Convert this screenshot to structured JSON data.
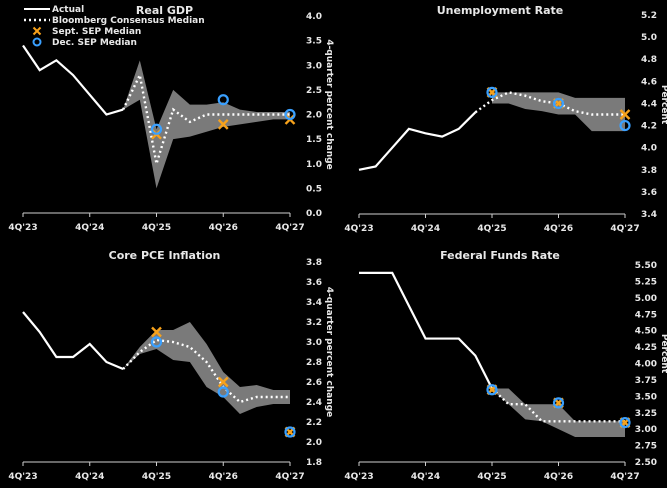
{
  "colors": {
    "background": "#000000",
    "actual": "#ffffff",
    "consensus": "#ffffff",
    "band": "#7a7a7a",
    "sept_sep": "#f7a21b",
    "dec_sep": "#3aa0ff"
  },
  "legend": [
    {
      "label": "Actual",
      "style": "solid-line"
    },
    {
      "label": "Bloomberg Consensus Median",
      "style": "dotted-line"
    },
    {
      "label": "Sept. SEP Median",
      "style": "x-marker"
    },
    {
      "label": "Dec. SEP Median",
      "style": "circle-marker"
    }
  ],
  "chart_data": [
    {
      "type": "line",
      "title": "Real GDP",
      "ylabel": "4-quarter percent change",
      "ylim": [
        0,
        4
      ],
      "yticks": [
        "0.0",
        "0.5",
        "1.0",
        "1.5",
        "2.0",
        "2.5",
        "3.0",
        "3.5",
        "4.0"
      ],
      "xticks": [
        "4Q'23",
        "4Q'24",
        "4Q'25",
        "4Q'26",
        "4Q'27"
      ],
      "categories": [
        "4Q'23",
        "1Q'24",
        "2Q'24",
        "3Q'24",
        "4Q'24",
        "1Q'25",
        "2Q'25",
        "3Q'25",
        "4Q'25",
        "1Q'26",
        "2Q'26",
        "3Q'26",
        "4Q'26",
        "1Q'27",
        "2Q'27",
        "3Q'27",
        "4Q'27"
      ],
      "actual": [
        3.4,
        2.9,
        3.1,
        2.8,
        2.4,
        2.0,
        2.1,
        null,
        null,
        null,
        null,
        null,
        null,
        null,
        null,
        null,
        null
      ],
      "consensus": [
        null,
        null,
        null,
        null,
        null,
        null,
        2.1,
        2.8,
        1.0,
        2.1,
        1.85,
        2.0,
        2.0,
        2.0,
        2.0,
        2.0,
        2.0
      ],
      "band_low": [
        null,
        null,
        null,
        null,
        null,
        null,
        2.1,
        2.3,
        0.5,
        1.5,
        1.55,
        1.65,
        1.75,
        1.8,
        1.85,
        1.9,
        1.9
      ],
      "band_high": [
        null,
        null,
        null,
        null,
        null,
        null,
        2.1,
        3.1,
        1.7,
        2.5,
        2.2,
        2.2,
        2.25,
        2.1,
        2.05,
        2.05,
        2.05
      ],
      "sept_sep": [
        {
          "x": "4Q'25",
          "y": 1.6
        },
        {
          "x": "4Q'26",
          "y": 1.8
        },
        {
          "x": "4Q'27",
          "y": 1.9
        }
      ],
      "dec_sep": [
        {
          "x": "4Q'25",
          "y": 1.7
        },
        {
          "x": "4Q'26",
          "y": 2.3
        },
        {
          "x": "4Q'27",
          "y": 2.0
        }
      ],
      "legend": "top-left",
      "grid": false
    },
    {
      "type": "line",
      "title": "Unemployment Rate",
      "ylabel": "Percent",
      "ylim": [
        3.4,
        5.2
      ],
      "yticks": [
        "3.4",
        "3.6",
        "3.8",
        "4.0",
        "4.2",
        "4.4",
        "4.6",
        "4.8",
        "5.0",
        "5.2"
      ],
      "xticks": [
        "4Q'23",
        "4Q'24",
        "4Q'25",
        "4Q'26",
        "4Q'27"
      ],
      "categories": [
        "4Q'23",
        "1Q'24",
        "2Q'24",
        "3Q'24",
        "4Q'24",
        "1Q'25",
        "2Q'25",
        "3Q'25",
        "4Q'25",
        "1Q'26",
        "2Q'26",
        "3Q'26",
        "4Q'26",
        "1Q'27",
        "2Q'27",
        "3Q'27",
        "4Q'27"
      ],
      "actual": [
        3.8,
        3.83,
        4.0,
        4.17,
        4.13,
        4.1,
        4.17,
        4.32,
        null,
        null,
        null,
        null,
        null,
        null,
        null,
        null,
        null
      ],
      "consensus": [
        null,
        null,
        null,
        null,
        null,
        null,
        null,
        4.32,
        4.43,
        4.5,
        4.47,
        4.42,
        4.4,
        4.33,
        4.3,
        4.3,
        4.3
      ],
      "band_low": [
        null,
        null,
        null,
        null,
        null,
        null,
        null,
        null,
        4.4,
        4.4,
        4.35,
        4.33,
        4.3,
        4.3,
        4.15,
        4.15,
        4.15
      ],
      "band_high": [
        null,
        null,
        null,
        null,
        null,
        null,
        null,
        null,
        4.5,
        4.5,
        4.5,
        4.5,
        4.5,
        4.45,
        4.45,
        4.45,
        4.45
      ],
      "sept_sep": [
        {
          "x": "4Q'25",
          "y": 4.5
        },
        {
          "x": "4Q'26",
          "y": 4.4
        },
        {
          "x": "4Q'27",
          "y": 4.3
        }
      ],
      "dec_sep": [
        {
          "x": "4Q'25",
          "y": 4.5
        },
        {
          "x": "4Q'26",
          "y": 4.4
        },
        {
          "x": "4Q'27",
          "y": 4.2
        }
      ],
      "grid": false
    },
    {
      "type": "line",
      "title": "Core PCE Inflation",
      "ylabel": "4-quarter percent change",
      "ylim": [
        1.8,
        3.8
      ],
      "yticks": [
        "1.8",
        "2.0",
        "2.2",
        "2.4",
        "2.6",
        "2.8",
        "3.0",
        "3.2",
        "3.4",
        "3.6",
        "3.8"
      ],
      "xticks": [
        "4Q'23",
        "4Q'24",
        "4Q'25",
        "4Q'26",
        "4Q'27"
      ],
      "categories": [
        "4Q'23",
        "1Q'24",
        "2Q'24",
        "3Q'24",
        "4Q'24",
        "1Q'25",
        "2Q'25",
        "3Q'25",
        "4Q'25",
        "1Q'26",
        "2Q'26",
        "3Q'26",
        "4Q'26",
        "1Q'27",
        "2Q'27",
        "3Q'27",
        "4Q'27"
      ],
      "actual": [
        3.3,
        3.1,
        2.85,
        2.85,
        2.98,
        2.8,
        2.73,
        null,
        null,
        null,
        null,
        null,
        null,
        null,
        null,
        null,
        null
      ],
      "consensus": [
        null,
        null,
        null,
        null,
        null,
        null,
        2.73,
        2.9,
        3.02,
        3.0,
        2.95,
        2.8,
        2.55,
        2.4,
        2.45,
        2.45,
        2.45
      ],
      "band_low": [
        null,
        null,
        null,
        null,
        null,
        null,
        2.73,
        2.88,
        2.93,
        2.82,
        2.8,
        2.55,
        2.45,
        2.28,
        2.35,
        2.38,
        2.38
      ],
      "band_high": [
        null,
        null,
        null,
        null,
        null,
        null,
        2.73,
        2.95,
        3.12,
        3.12,
        3.2,
        2.98,
        2.7,
        2.55,
        2.57,
        2.52,
        2.52
      ],
      "sept_sep": [
        {
          "x": "4Q'25",
          "y": 3.1
        },
        {
          "x": "4Q'26",
          "y": 2.6
        },
        {
          "x": "4Q'27",
          "y": 2.1
        }
      ],
      "dec_sep": [
        {
          "x": "4Q'25",
          "y": 3.0
        },
        {
          "x": "4Q'26",
          "y": 2.5
        },
        {
          "x": "4Q'27",
          "y": 2.1
        }
      ],
      "grid": false
    },
    {
      "type": "line",
      "title": "Federal Funds Rate",
      "ylabel": "Percent",
      "ylim": [
        2.5,
        5.5
      ],
      "yticks": [
        "2.50",
        "2.75",
        "3.00",
        "3.25",
        "3.50",
        "3.75",
        "4.00",
        "4.25",
        "4.50",
        "4.75",
        "5.00",
        "5.25",
        "5.50"
      ],
      "xticks": [
        "4Q'23",
        "4Q'24",
        "4Q'25",
        "4Q'26",
        "4Q'27"
      ],
      "categories": [
        "4Q'23",
        "1Q'24",
        "2Q'24",
        "3Q'24",
        "4Q'24",
        "1Q'25",
        "2Q'25",
        "3Q'25",
        "4Q'25",
        "1Q'26",
        "2Q'26",
        "3Q'26",
        "4Q'26",
        "1Q'27",
        "2Q'27",
        "3Q'27",
        "4Q'27"
      ],
      "actual": [
        5.38,
        5.38,
        5.38,
        4.88,
        4.38,
        4.38,
        4.38,
        4.12,
        3.62,
        null,
        null,
        null,
        null,
        null,
        null,
        null,
        null
      ],
      "consensus": [
        null,
        null,
        null,
        null,
        null,
        null,
        null,
        null,
        3.62,
        3.38,
        3.38,
        3.12,
        3.12,
        3.12,
        3.12,
        3.12,
        3.12
      ],
      "band_low": [
        null,
        null,
        null,
        null,
        null,
        null,
        null,
        null,
        3.6,
        3.38,
        3.15,
        3.12,
        3.0,
        2.88,
        2.88,
        2.88,
        2.88
      ],
      "band_high": [
        null,
        null,
        null,
        null,
        null,
        null,
        null,
        null,
        3.62,
        3.62,
        3.38,
        3.38,
        3.38,
        3.12,
        3.12,
        3.12,
        3.12
      ],
      "sept_sep": [
        {
          "x": "4Q'25",
          "y": 3.6
        },
        {
          "x": "4Q'26",
          "y": 3.4
        },
        {
          "x": "4Q'27",
          "y": 3.1
        }
      ],
      "dec_sep": [
        {
          "x": "4Q'25",
          "y": 3.6
        },
        {
          "x": "4Q'26",
          "y": 3.4
        },
        {
          "x": "4Q'27",
          "y": 3.1
        }
      ],
      "grid": false
    }
  ]
}
